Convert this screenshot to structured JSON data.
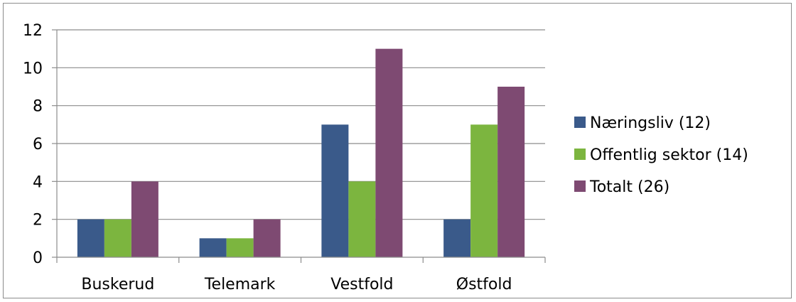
{
  "chart_data": {
    "type": "bar",
    "categories": [
      "Buskerud",
      "Telemark",
      "Vestfold",
      "Østfold"
    ],
    "series": [
      {
        "name": "Næringsliv (12)",
        "color": "#3a5a8a",
        "values": [
          2,
          1,
          7,
          2
        ]
      },
      {
        "name": "Offentlig sektor (14)",
        "color": "#7cb53f",
        "values": [
          2,
          1,
          4,
          7
        ]
      },
      {
        "name": "Totalt (26)",
        "color": "#7e4a72",
        "values": [
          4,
          2,
          11,
          9
        ]
      }
    ],
    "yticks": [
      "0",
      "2",
      "4",
      "6",
      "8",
      "10",
      "12"
    ],
    "ylim": [
      0,
      12
    ],
    "grid": true,
    "legend_position": "right"
  }
}
